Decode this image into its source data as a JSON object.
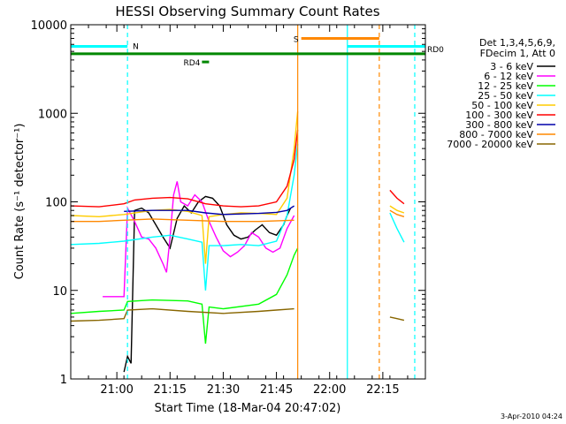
{
  "colors": {
    "background": "#ffffff",
    "axes": "#000000"
  },
  "chart_data": {
    "type": "line",
    "title": "HESSI Observing Summary Count Rates",
    "xlabel": "Start Time (18-Mar-04 20:47:02)",
    "ylabel": "Count Rate (s⁻¹ detector⁻¹)",
    "y_scale": "log",
    "ylim": [
      1,
      10000
    ],
    "xlim": [
      "20:47",
      "22:27"
    ],
    "x_ticks": [
      "21:00",
      "21:15",
      "21:30",
      "21:45",
      "22:00",
      "22:15"
    ],
    "y_ticks": [
      "1",
      "10",
      "100",
      "1000",
      "10000"
    ],
    "grid": false,
    "legend_position": "right",
    "legend_header": [
      "Det 1,3,4,5,6,9,",
      "FDecim 1, Att 0"
    ],
    "footer_date": "3-Apr-2010 04:24",
    "series": [
      {
        "name": "3 - 6 keV",
        "color": "#000000",
        "points": [
          [
            "21:02",
            1.2
          ],
          [
            "21:03",
            1.8
          ],
          [
            "21:04",
            1.5
          ],
          [
            "21:05",
            80
          ],
          [
            "21:07",
            85
          ],
          [
            "21:09",
            75
          ],
          [
            "21:11",
            55
          ],
          [
            "21:13",
            40
          ],
          [
            "21:15",
            30
          ],
          [
            "21:17",
            65
          ],
          [
            "21:19",
            90
          ],
          [
            "21:21",
            75
          ],
          [
            "21:23",
            100
          ],
          [
            "21:25",
            115
          ],
          [
            "21:27",
            110
          ],
          [
            "21:29",
            90
          ],
          [
            "21:31",
            55
          ],
          [
            "21:33",
            42
          ],
          [
            "21:35",
            38
          ],
          [
            "21:37",
            40
          ],
          [
            "21:39",
            48
          ],
          [
            "21:41",
            55
          ],
          [
            "21:43",
            45
          ],
          [
            "21:45",
            42
          ],
          [
            "21:47",
            55
          ],
          [
            "21:48",
            70
          ],
          [
            "21:49",
            85
          ]
        ]
      },
      {
        "name": "6 - 12 keV",
        "color": "#ff00ff",
        "points": [
          [
            "20:56",
            8.5
          ],
          [
            "21:00",
            8.5
          ],
          [
            "21:02",
            8.5
          ],
          [
            "21:03",
            85
          ],
          [
            "21:05",
            60
          ],
          [
            "21:07",
            40
          ],
          [
            "21:09",
            38
          ],
          [
            "21:11",
            30
          ],
          [
            "21:13",
            20
          ],
          [
            "21:14",
            16
          ],
          [
            "21:15",
            40
          ],
          [
            "21:16",
            120
          ],
          [
            "21:17",
            170
          ],
          [
            "21:18",
            100
          ],
          [
            "21:20",
            90
          ],
          [
            "21:22",
            120
          ],
          [
            "21:24",
            100
          ],
          [
            "21:26",
            60
          ],
          [
            "21:28",
            40
          ],
          [
            "21:30",
            28
          ],
          [
            "21:32",
            24
          ],
          [
            "21:34",
            27
          ],
          [
            "21:36",
            32
          ],
          [
            "21:38",
            45
          ],
          [
            "21:40",
            40
          ],
          [
            "21:42",
            30
          ],
          [
            "21:44",
            27
          ],
          [
            "21:46",
            30
          ],
          [
            "21:48",
            50
          ],
          [
            "21:50",
            70
          ]
        ]
      },
      {
        "name": "12 - 25 keV",
        "color": "#00ff00",
        "points": [
          [
            "20:47",
            5.5
          ],
          [
            "20:55",
            5.8
          ],
          [
            "21:02",
            6
          ],
          [
            "21:03",
            7.5
          ],
          [
            "21:10",
            7.8
          ],
          [
            "21:20",
            7.6
          ],
          [
            "21:24",
            7
          ],
          [
            "21:25",
            2.5
          ],
          [
            "21:26",
            6.5
          ],
          [
            "21:30",
            6.2
          ],
          [
            "21:40",
            7
          ],
          [
            "21:45",
            9
          ],
          [
            "21:48",
            15
          ],
          [
            "21:50",
            25
          ],
          [
            "21:51",
            30
          ]
        ]
      },
      {
        "name": "25 - 50 keV",
        "color": "#00ffff",
        "points": [
          [
            "20:47",
            33
          ],
          [
            "20:55",
            34
          ],
          [
            "21:02",
            36
          ],
          [
            "21:10",
            40
          ],
          [
            "21:15",
            42
          ],
          [
            "21:20",
            38
          ],
          [
            "21:24",
            35
          ],
          [
            "21:25",
            10
          ],
          [
            "21:26",
            32
          ],
          [
            "21:30",
            32
          ],
          [
            "21:35",
            33
          ],
          [
            "21:40",
            32
          ],
          [
            "21:45",
            36
          ],
          [
            "21:48",
            70
          ],
          [
            "21:50",
            200
          ],
          [
            "21:51",
            450
          ],
          [
            "22:17",
            75
          ],
          [
            "22:19",
            50
          ],
          [
            "22:21",
            35
          ]
        ]
      },
      {
        "name": "50 - 100 keV",
        "color": "#ffcc00",
        "points": [
          [
            "20:47",
            70
          ],
          [
            "20:55",
            68
          ],
          [
            "21:02",
            72
          ],
          [
            "21:10",
            80
          ],
          [
            "21:15",
            82
          ],
          [
            "21:20",
            78
          ],
          [
            "21:24",
            70
          ],
          [
            "21:25",
            20
          ],
          [
            "21:26",
            68
          ],
          [
            "21:30",
            72
          ],
          [
            "21:35",
            75
          ],
          [
            "21:40",
            74
          ],
          [
            "21:45",
            72
          ],
          [
            "21:48",
            110
          ],
          [
            "21:50",
            400
          ],
          [
            "21:51",
            1050
          ],
          [
            "22:17",
            90
          ],
          [
            "22:19",
            80
          ],
          [
            "22:21",
            75
          ]
        ]
      },
      {
        "name": "100 - 300 keV",
        "color": "#ff0000",
        "points": [
          [
            "20:47",
            90
          ],
          [
            "20:55",
            88
          ],
          [
            "21:02",
            95
          ],
          [
            "21:05",
            105
          ],
          [
            "21:10",
            110
          ],
          [
            "21:15",
            112
          ],
          [
            "21:20",
            108
          ],
          [
            "21:25",
            95
          ],
          [
            "21:30",
            90
          ],
          [
            "21:35",
            88
          ],
          [
            "21:40",
            90
          ],
          [
            "21:45",
            100
          ],
          [
            "21:48",
            150
          ],
          [
            "21:50",
            300
          ],
          [
            "21:51",
            650
          ],
          [
            "22:17",
            135
          ],
          [
            "22:19",
            110
          ],
          [
            "22:21",
            95
          ]
        ]
      },
      {
        "name": "300 - 800 keV",
        "color": "#0000aa",
        "points": [
          [
            "21:02",
            78
          ],
          [
            "21:10",
            80
          ],
          [
            "21:20",
            80
          ],
          [
            "21:25",
            75
          ],
          [
            "21:30",
            72
          ],
          [
            "21:40",
            74
          ],
          [
            "21:45",
            76
          ],
          [
            "21:48",
            80
          ],
          [
            "21:50",
            90
          ]
        ]
      },
      {
        "name": "800 - 7000 keV",
        "color": "#ff8800",
        "points": [
          [
            "20:47",
            60
          ],
          [
            "20:55",
            60
          ],
          [
            "21:02",
            62
          ],
          [
            "21:10",
            64
          ],
          [
            "21:20",
            62
          ],
          [
            "21:30",
            60
          ],
          [
            "21:40",
            60
          ],
          [
            "21:50",
            62
          ],
          [
            "22:17",
            80
          ],
          [
            "22:19",
            72
          ],
          [
            "22:21",
            68
          ]
        ]
      },
      {
        "name": "7000 - 20000 keV",
        "color": "#886600",
        "points": [
          [
            "20:47",
            4.5
          ],
          [
            "20:55",
            4.6
          ],
          [
            "21:02",
            4.8
          ],
          [
            "21:03",
            6
          ],
          [
            "21:10",
            6.2
          ],
          [
            "21:20",
            5.8
          ],
          [
            "21:30",
            5.5
          ],
          [
            "21:40",
            5.8
          ],
          [
            "21:45",
            6
          ],
          [
            "21:50",
            6.2
          ],
          [
            "22:17",
            5
          ],
          [
            "22:19",
            4.8
          ],
          [
            "22:21",
            4.6
          ]
        ]
      }
    ],
    "vertical_markers": [
      {
        "time": "21:03",
        "color": "#00ffff",
        "style": "dashed"
      },
      {
        "time": "21:51",
        "color": "#ff8800",
        "style": "solid"
      },
      {
        "time": "22:05",
        "color": "#00ffff",
        "style": "solid"
      },
      {
        "time": "22:14",
        "color": "#ff8800",
        "style": "dashed"
      },
      {
        "time": "22:24",
        "color": "#00ffff",
        "style": "dashed"
      }
    ],
    "flag_bars": [
      {
        "label": "N",
        "color": "#00ffff",
        "start": "20:47",
        "end": "21:03",
        "value": 5700
      },
      {
        "label": "",
        "color": "#00ffff",
        "start": "22:05",
        "end": "22:27",
        "value": 5700
      },
      {
        "label": "S",
        "color": "#ff8800",
        "start": "21:52",
        "end": "22:14",
        "value": 7000
      },
      {
        "label": "RD0",
        "color": "#008800",
        "start": "20:47",
        "end": "22:27",
        "value": 4700
      },
      {
        "label": "RD4",
        "color": "#008800",
        "start": "21:24",
        "end": "21:26",
        "value": 3800
      }
    ]
  }
}
